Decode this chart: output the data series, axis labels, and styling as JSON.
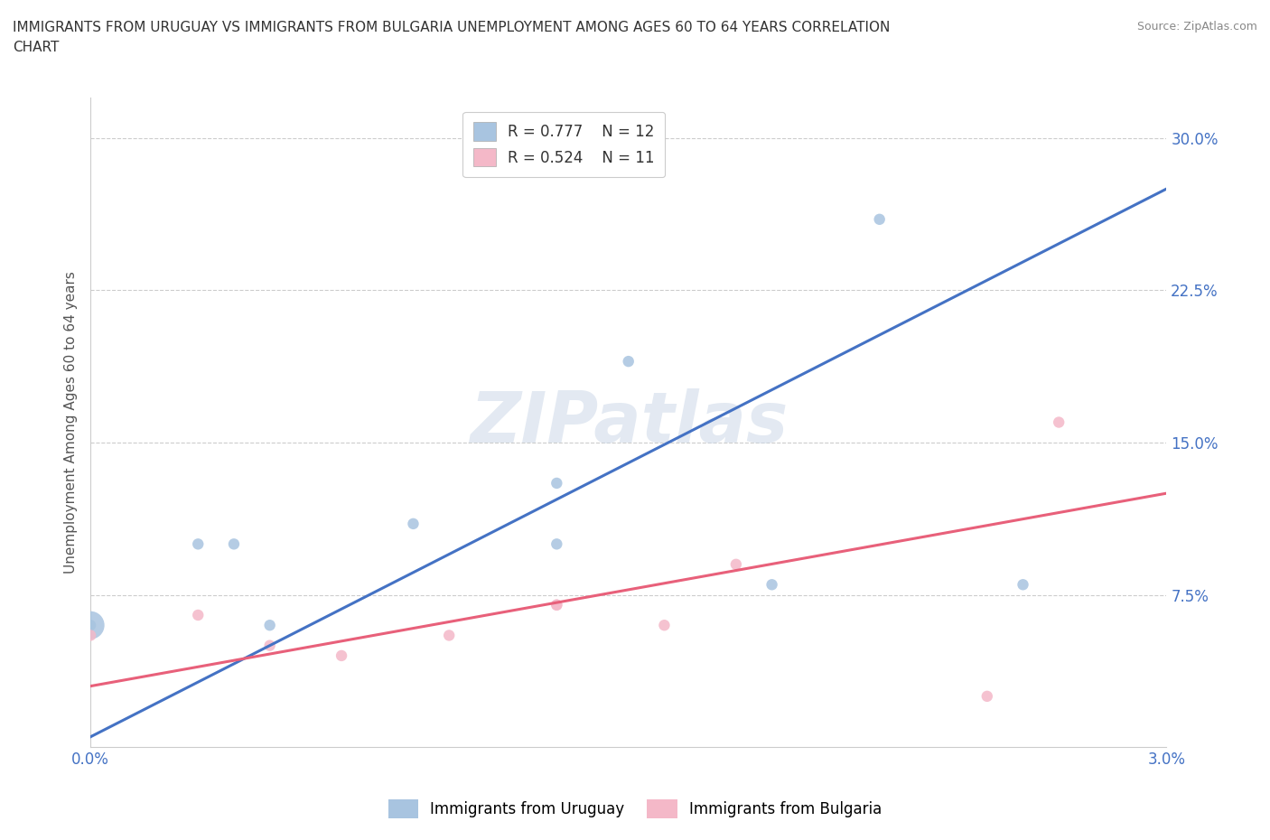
{
  "title": "IMMIGRANTS FROM URUGUAY VS IMMIGRANTS FROM BULGARIA UNEMPLOYMENT AMONG AGES 60 TO 64 YEARS CORRELATION\nCHART",
  "source": "Source: ZipAtlas.com",
  "ylabel": "Unemployment Among Ages 60 to 64 years",
  "xlim": [
    0.0,
    0.03
  ],
  "ylim": [
    0.0,
    0.32
  ],
  "xticks": [
    0.0,
    0.005,
    0.01,
    0.015,
    0.02,
    0.025,
    0.03
  ],
  "xtick_labels": [
    "0.0%",
    "",
    "",
    "",
    "",
    "",
    "3.0%"
  ],
  "yticks": [
    0.075,
    0.15,
    0.225,
    0.3
  ],
  "ytick_labels": [
    "7.5%",
    "15.0%",
    "22.5%",
    "30.0%"
  ],
  "grid_color": "#cccccc",
  "background_color": "#ffffff",
  "watermark": "ZIPatlas",
  "uruguay_color": "#a8c4e0",
  "bulgaria_color": "#f4b8c8",
  "uruguay_line_color": "#4472c4",
  "bulgaria_line_color": "#e8607a",
  "uruguay_R": 0.777,
  "uruguay_N": 12,
  "bulgaria_R": 0.524,
  "bulgaria_N": 11,
  "uruguay_x": [
    0.0,
    0.0,
    0.003,
    0.004,
    0.005,
    0.009,
    0.013,
    0.013,
    0.015,
    0.019,
    0.022,
    0.026
  ],
  "uruguay_y": [
    0.06,
    0.06,
    0.1,
    0.1,
    0.06,
    0.11,
    0.13,
    0.1,
    0.19,
    0.08,
    0.26,
    0.08
  ],
  "uruguay_size": [
    80,
    500,
    80,
    80,
    80,
    80,
    80,
    80,
    80,
    80,
    80,
    80
  ],
  "bulgaria_x": [
    0.0,
    0.003,
    0.005,
    0.007,
    0.01,
    0.013,
    0.013,
    0.016,
    0.018,
    0.025,
    0.027
  ],
  "bulgaria_y": [
    0.055,
    0.065,
    0.05,
    0.045,
    0.055,
    0.07,
    0.07,
    0.06,
    0.09,
    0.025,
    0.16
  ],
  "bulgaria_size": [
    80,
    80,
    80,
    80,
    80,
    80,
    80,
    80,
    80,
    80,
    80
  ],
  "uruguay_line_x": [
    0.0,
    0.03
  ],
  "uruguay_line_y": [
    0.005,
    0.275
  ],
  "bulgaria_line_x": [
    0.0,
    0.03
  ],
  "bulgaria_line_y": [
    0.03,
    0.125
  ]
}
